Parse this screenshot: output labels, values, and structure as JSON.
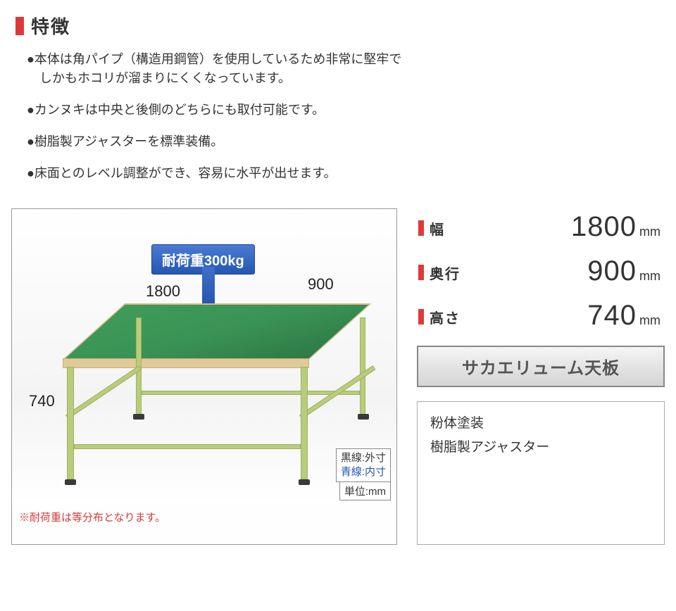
{
  "header": {
    "title": "特徴"
  },
  "features": [
    "●本体は角パイプ（構造用鋼管）を使用しているため非常に堅牢で\n　しかもホコリが溜まりにくくなっています。",
    "●カンヌキは中央と後側のどちらにも取付可能です。",
    "●樹脂製アジャスターを標準装備。",
    "●床面とのレベル調整ができ、容易に水平が出せます。"
  ],
  "diagram": {
    "load_badge": "耐荷重300kg",
    "dim_width": "1800",
    "dim_depth": "900",
    "dim_height": "740",
    "legend_outer": "黒線:外寸",
    "legend_inner": "青線:内寸",
    "unit_label": "単位:mm",
    "note": "※耐荷重は等分布となります。",
    "colors": {
      "tabletop": "#3a9356",
      "frame": "#b9cc7e",
      "badge_bg": "#2f5fba",
      "badge_text": "#ffffff"
    }
  },
  "specs": [
    {
      "label": "幅",
      "value": "1800",
      "unit": "mm"
    },
    {
      "label": "奥行",
      "value": "900",
      "unit": "mm"
    },
    {
      "label": "高さ",
      "value": "740",
      "unit": "mm"
    }
  ],
  "tabletop_name": "サカエリューム天板",
  "materials": [
    "粉体塗装",
    "樹脂製アジャスター"
  ],
  "palette": {
    "accent_red": "#dc3a3a",
    "text": "#333333",
    "border_gray": "#999999",
    "blue": "#2556b0"
  }
}
